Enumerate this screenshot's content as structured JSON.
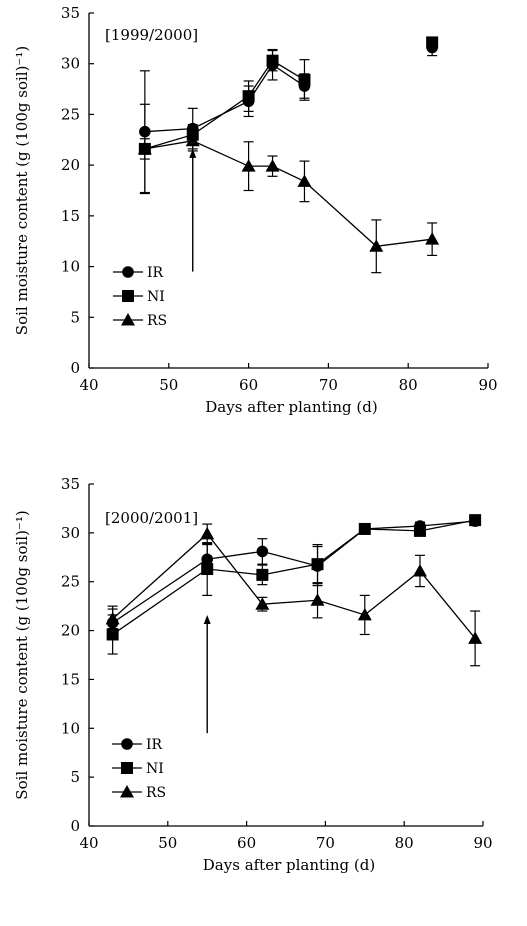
{
  "chart_data": [
    {
      "type": "line",
      "panel_label": "[1999/2000]",
      "xlabel": "Days after planting (d)",
      "ylabel": "Soil moisture content (g (100g soil)⁻¹)",
      "xlim": [
        40,
        90
      ],
      "ylim": [
        0,
        35
      ],
      "xticks": [
        "40",
        "50",
        "60",
        "70",
        "80",
        "90"
      ],
      "yticks": [
        "0",
        "5",
        "10",
        "15",
        "20",
        "25",
        "30",
        "35"
      ],
      "grid": false,
      "legend_position": "bottom-left",
      "arrow_at_x": 53,
      "series": [
        {
          "name": "IR",
          "marker": "circle",
          "points": [
            {
              "x": 47,
              "y": 23.3,
              "err": 6.0
            },
            {
              "x": 53,
              "y": 23.6,
              "err": 2.0
            },
            {
              "x": 60,
              "y": 26.3,
              "err": 1.5
            },
            {
              "x": 63,
              "y": 29.9,
              "err": 1.5
            },
            {
              "x": 67,
              "y": 27.8,
              "err": 1.2
            },
            {
              "x": 83,
              "y": 31.6,
              "err": 0.8
            }
          ]
        },
        {
          "name": "NI",
          "marker": "square",
          "points": [
            {
              "x": 47,
              "y": 21.6,
              "err": 1.0
            },
            {
              "x": 53,
              "y": 23.0,
              "err": 1.0
            },
            {
              "x": 60,
              "y": 26.8,
              "err": 1.5
            },
            {
              "x": 63,
              "y": 30.3,
              "err": 1.0
            },
            {
              "x": 67,
              "y": 28.4,
              "err": 2.0
            },
            {
              "x": 83,
              "y": 32.1,
              "err": 0.5
            }
          ]
        },
        {
          "name": "RS",
          "marker": "triangle",
          "points": [
            {
              "x": 47,
              "y": 21.6,
              "err": 4.4
            },
            {
              "x": 53,
              "y": 22.4,
              "err": 1.0
            },
            {
              "x": 60,
              "y": 19.9,
              "err": 2.4
            },
            {
              "x": 63,
              "y": 19.9,
              "err": 1.0
            },
            {
              "x": 67,
              "y": 18.4,
              "err": 2.0
            },
            {
              "x": 76,
              "y": 12.0,
              "err": 2.6
            },
            {
              "x": 83,
              "y": 12.7,
              "err": 1.6
            }
          ]
        }
      ]
    },
    {
      "type": "line",
      "panel_label": "[2000/2001]",
      "xlabel": "Days after planting (d)",
      "ylabel": "Soil moisture content (g (100g  soil)⁻¹)",
      "xlim": [
        40,
        90
      ],
      "ylim": [
        0,
        35
      ],
      "xticks": [
        "40",
        "50",
        "60",
        "70",
        "80",
        "90"
      ],
      "yticks": [
        "0",
        "5",
        "10",
        "15",
        "20",
        "25",
        "30",
        "35"
      ],
      "grid": false,
      "legend_position": "bottom-left",
      "arrow_at_x": 55,
      "series": [
        {
          "name": "IR",
          "marker": "circle",
          "points": [
            {
              "x": 43,
              "y": 20.8,
              "err": 1.7
            },
            {
              "x": 55,
              "y": 27.3,
              "err": 1.5
            },
            {
              "x": 62,
              "y": 28.1,
              "err": 1.3
            },
            {
              "x": 69,
              "y": 26.6,
              "err": 2.0
            },
            {
              "x": 75,
              "y": 30.4,
              "err": 0.5
            },
            {
              "x": 82,
              "y": 30.7,
              "err": 0.4
            },
            {
              "x": 89,
              "y": 31.2,
              "err": 0.4
            }
          ]
        },
        {
          "name": "NI",
          "marker": "square",
          "points": [
            {
              "x": 43,
              "y": 19.6,
              "err": 2.0
            },
            {
              "x": 55,
              "y": 26.3,
              "err": 2.7
            },
            {
              "x": 62,
              "y": 25.7,
              "err": 1.0
            },
            {
              "x": 69,
              "y": 26.8,
              "err": 2.0
            },
            {
              "x": 75,
              "y": 30.4,
              "err": 0.5
            },
            {
              "x": 82,
              "y": 30.2,
              "err": 0.5
            },
            {
              "x": 89,
              "y": 31.3,
              "err": 0.4
            }
          ]
        },
        {
          "name": "RS",
          "marker": "triangle",
          "points": [
            {
              "x": 43,
              "y": 21.2,
              "err": 1.0
            },
            {
              "x": 55,
              "y": 29.9,
              "err": 1.0
            },
            {
              "x": 62,
              "y": 22.7,
              "err": 0.7
            },
            {
              "x": 69,
              "y": 23.1,
              "err": 1.8
            },
            {
              "x": 75,
              "y": 21.6,
              "err": 2.0
            },
            {
              "x": 82,
              "y": 26.1,
              "err": 1.6
            },
            {
              "x": 89,
              "y": 19.2,
              "err": 2.8
            }
          ]
        }
      ]
    }
  ]
}
